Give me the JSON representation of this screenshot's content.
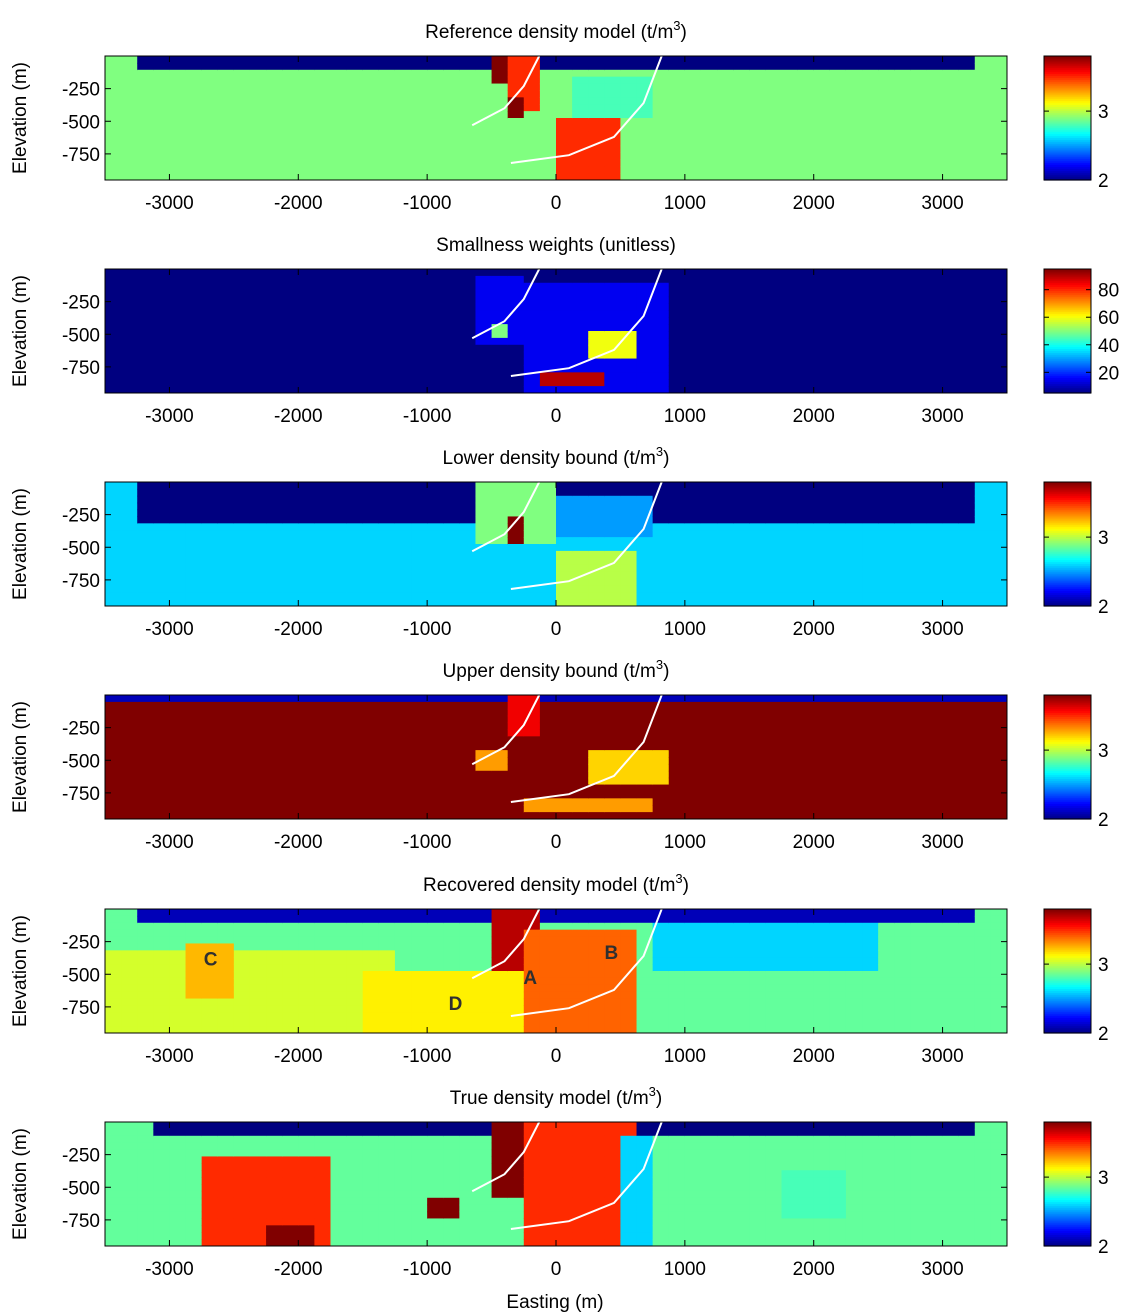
{
  "figure": {
    "xlabel": "Easting (m)",
    "colormap": "jet",
    "panels": [
      {
        "title": "Reference density model",
        "unit": "(t/m",
        "unit_sup": "3",
        "unit_close": ")",
        "ylabel": "Elevation (m)",
        "colorbar": {
          "ticks": [
            2,
            3
          ],
          "range": [
            2,
            3.8
          ]
        },
        "annotations": []
      },
      {
        "title": "Smallness weights",
        "unit": "(unitless)",
        "unit_sup": "",
        "unit_close": "",
        "ylabel": "Elevation (m)",
        "colorbar": {
          "ticks": [
            20,
            40,
            60,
            80
          ],
          "range": [
            5,
            95
          ]
        },
        "annotations": []
      },
      {
        "title": "Lower density bound",
        "unit": "(t/m",
        "unit_sup": "3",
        "unit_close": ")",
        "ylabel": "Elevation (m)",
        "colorbar": {
          "ticks": [
            2,
            3
          ],
          "range": [
            2,
            3.8
          ]
        },
        "annotations": []
      },
      {
        "title": "Upper density bound",
        "unit": "(t/m",
        "unit_sup": "3",
        "unit_close": ")",
        "ylabel": "Elevation (m)",
        "colorbar": {
          "ticks": [
            2,
            3
          ],
          "range": [
            2,
            3.8
          ]
        },
        "annotations": []
      },
      {
        "title": "Recovered density model",
        "unit": "(t/m",
        "unit_sup": "3",
        "unit_close": ")",
        "ylabel": "Elevation (m)",
        "colorbar": {
          "ticks": [
            2,
            3
          ],
          "range": [
            2,
            3.8
          ]
        },
        "annotations": [
          {
            "label": "A",
            "x": -200,
            "y": -520
          },
          {
            "label": "B",
            "x": 430,
            "y": -330
          },
          {
            "label": "C",
            "x": -2680,
            "y": -380
          },
          {
            "label": "D",
            "x": -780,
            "y": -720
          }
        ]
      },
      {
        "title": "True density model",
        "unit": "(t/m",
        "unit_sup": "3",
        "unit_close": ")",
        "ylabel": "Elevation (m)",
        "colorbar": {
          "ticks": [
            2,
            3
          ],
          "range": [
            2,
            3.8
          ]
        },
        "annotations": []
      }
    ]
  },
  "chart_data": {
    "type": "heatmap",
    "xlim": [
      -3500,
      3500
    ],
    "ylim": [
      -950,
      0
    ],
    "xticks": [
      -3000,
      -2000,
      -1000,
      0,
      1000,
      2000,
      3000
    ],
    "yticks": [
      -250,
      -500,
      -750
    ],
    "overlay_curves": [
      {
        "points": [
          [
            -650,
            -530
          ],
          [
            -400,
            -400
          ],
          [
            -250,
            -230
          ],
          [
            -130,
            0
          ]
        ]
      },
      {
        "points": [
          [
            -350,
            -820
          ],
          [
            100,
            -760
          ],
          [
            450,
            -620
          ],
          [
            680,
            -360
          ],
          [
            820,
            0
          ]
        ]
      }
    ],
    "panels": [
      {
        "background": 2.9,
        "regions": [
          {
            "x": [
              -3300,
              3300
            ],
            "y": [
              -100,
              0
            ],
            "v": 2.0
          },
          {
            "x": [
              -400,
              -150
            ],
            "y": [
              -400,
              0
            ],
            "v": 3.5
          },
          {
            "x": [
              -500,
              -350
            ],
            "y": [
              -200,
              0
            ],
            "v": 3.9
          },
          {
            "x": [
              -380,
              -250
            ],
            "y": [
              -500,
              -300
            ],
            "v": 3.9
          },
          {
            "x": [
              0,
              550
            ],
            "y": [
              -950,
              -500
            ],
            "v": 3.5
          },
          {
            "x": [
              150,
              750
            ],
            "y": [
              -500,
              -150
            ],
            "v": 2.8
          }
        ]
      },
      {
        "background": 5,
        "regions": [
          {
            "x": [
              -600,
              -250
            ],
            "y": [
              -600,
              -50
            ],
            "v": 15
          },
          {
            "x": [
              -550,
              -350
            ],
            "y": [
              -520,
              -420
            ],
            "v": 50
          },
          {
            "x": [
              -300,
              850
            ],
            "y": [
              -950,
              -100
            ],
            "v": 15
          },
          {
            "x": [
              200,
              650
            ],
            "y": [
              -700,
              -450
            ],
            "v": 60
          },
          {
            "x": [
              -150,
              350
            ],
            "y": [
              -900,
              -780
            ],
            "v": 90
          }
        ]
      },
      {
        "background": 2.6,
        "regions": [
          {
            "x": [
              -3300,
              3300
            ],
            "y": [
              -300,
              0
            ],
            "v": 2.0
          },
          {
            "x": [
              -650,
              50
            ],
            "y": [
              -500,
              0
            ],
            "v": 2.9
          },
          {
            "x": [
              -330,
              -230
            ],
            "y": [
              -450,
              -280
            ],
            "v": 3.9
          },
          {
            "x": [
              0,
              650
            ],
            "y": [
              -950,
              -550
            ],
            "v": 3.0
          },
          {
            "x": [
              50,
              800
            ],
            "y": [
              -400,
              -100
            ],
            "v": 2.5
          }
        ]
      },
      {
        "background": 3.95,
        "regions": [
          {
            "x": [
              -3500,
              3500
            ],
            "y": [
              -60,
              0
            ],
            "v": 2.1
          },
          {
            "x": [
              -600,
              -350
            ],
            "y": [
              -600,
              -400
            ],
            "v": 3.3
          },
          {
            "x": [
              -400,
              -150
            ],
            "y": [
              -300,
              0
            ],
            "v": 3.6
          },
          {
            "x": [
              -300,
              800
            ],
            "y": [
              -900,
              -780
            ],
            "v": 3.3
          },
          {
            "x": [
              300,
              850
            ],
            "y": [
              -700,
              -400
            ],
            "v": 3.2
          }
        ]
      },
      {
        "background": 2.85,
        "regions": [
          {
            "x": [
              -3300,
              3300
            ],
            "y": [
              -100,
              0
            ],
            "v": 2.1
          },
          {
            "x": [
              -3500,
              -1200
            ],
            "y": [
              -950,
              -300
            ],
            "v": 3.05
          },
          {
            "x": [
              -2900,
              -2450
            ],
            "y": [
              -700,
              -250
            ],
            "v": 3.25
          },
          {
            "x": [
              -1500,
              -300
            ],
            "y": [
              -950,
              -450
            ],
            "v": 3.15
          },
          {
            "x": [
              -500,
              -150
            ],
            "y": [
              -500,
              0
            ],
            "v": 3.7
          },
          {
            "x": [
              -250,
              600
            ],
            "y": [
              -950,
              -150
            ],
            "v": 3.4
          },
          {
            "x": [
              750,
              2500
            ],
            "y": [
              -500,
              -100
            ],
            "v": 2.6
          }
        ]
      },
      {
        "background": 2.85,
        "regions": [
          {
            "x": [
              -3100,
              3200
            ],
            "y": [
              -100,
              0
            ],
            "v": 2.0
          },
          {
            "x": [
              -2700,
              -1800
            ],
            "y": [
              -950,
              -250
            ],
            "v": 3.5
          },
          {
            "x": [
              -2300,
              -1900
            ],
            "y": [
              -950,
              -800
            ],
            "v": 3.9
          },
          {
            "x": [
              -950,
              -700
            ],
            "y": [
              -750,
              -600
            ],
            "v": 3.9
          },
          {
            "x": [
              -500,
              -200
            ],
            "y": [
              -600,
              0
            ],
            "v": 3.9
          },
          {
            "x": [
              -250,
              600
            ],
            "y": [
              -950,
              0
            ],
            "v": 3.5
          },
          {
            "x": [
              450,
              800
            ],
            "y": [
              -950,
              -100
            ],
            "v": 2.6
          },
          {
            "x": [
              1800,
              2300
            ],
            "y": [
              -750,
              -350
            ],
            "v": 2.8
          }
        ]
      }
    ]
  }
}
